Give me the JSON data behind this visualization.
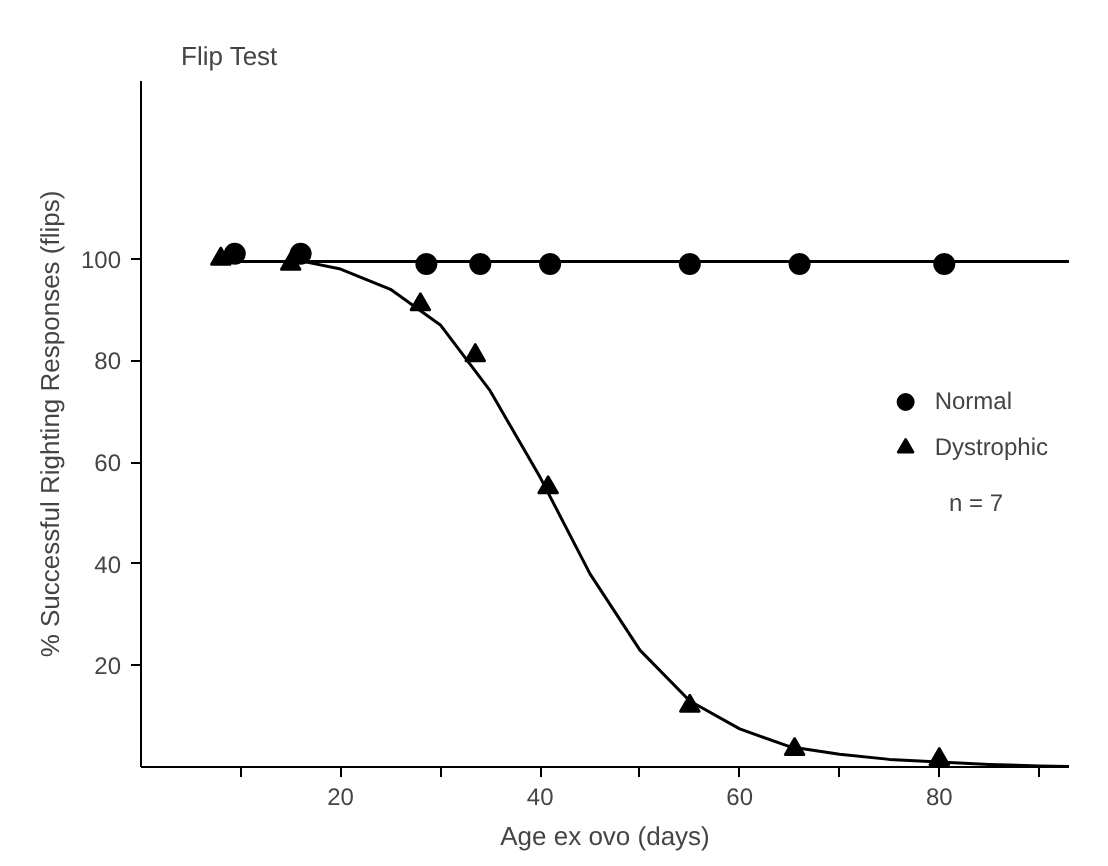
{
  "chart_data": {
    "type": "scatter",
    "title": "Flip Test",
    "xlabel": "Age ex ovo (days)",
    "ylabel": "% Successful Righting Responses (flips)",
    "xlim": [
      0,
      93
    ],
    "ylim": [
      0,
      135
    ],
    "xticks": [
      {
        "value": 10,
        "label": null
      },
      20,
      {
        "value": 30,
        "label": null
      },
      40,
      {
        "value": 50,
        "label": null
      },
      60,
      {
        "value": 70,
        "label": null
      },
      80,
      {
        "value": 90,
        "label": null
      }
    ],
    "yticks": [
      20,
      40,
      60,
      80,
      100
    ],
    "grid": false,
    "legend": "right",
    "annotations": [
      "n = 7"
    ],
    "series": [
      {
        "name": "Normal",
        "color": "#000000",
        "marker": "circle",
        "x": [
          9.4,
          16,
          28.6,
          34,
          41,
          55,
          66,
          80.5
        ],
        "values": [
          101,
          101,
          99,
          99,
          99,
          99,
          99,
          99
        ]
      },
      {
        "name": "Dystrophic",
        "color": "#000000",
        "marker": "triangle",
        "x": [
          8,
          15,
          28,
          33.5,
          40.8,
          55,
          65.5,
          80
        ],
        "values": [
          100,
          99,
          91,
          81,
          55,
          12,
          3.5,
          1.5
        ]
      },
      {
        "type": "line",
        "color": "#000000",
        "marker": "none",
        "x": [
          8,
          93
        ],
        "values": [
          99.5,
          99.5
        ]
      },
      {
        "type": "line",
        "color": "#000000",
        "marker": "none",
        "x": [
          15,
          20,
          25,
          30,
          35,
          40,
          45,
          50,
          55,
          60,
          65,
          70,
          75,
          80,
          85,
          90,
          93
        ],
        "values": [
          100,
          98,
          94,
          87,
          74,
          57,
          38,
          23,
          13,
          7.5,
          4,
          2.5,
          1.5,
          1,
          0.5,
          0.2,
          0.1
        ]
      }
    ]
  }
}
